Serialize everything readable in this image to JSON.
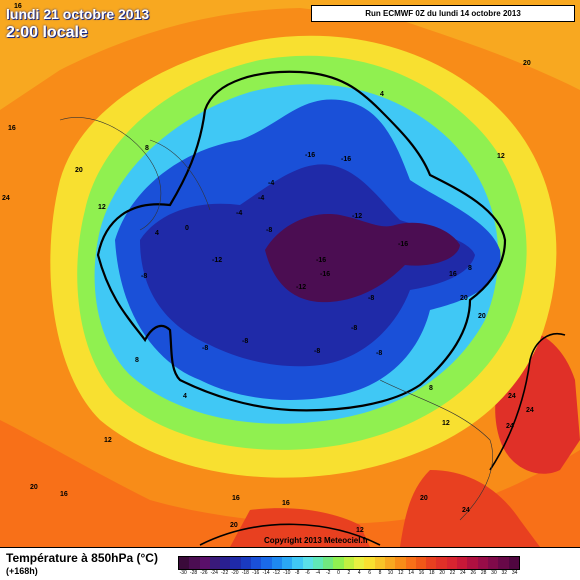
{
  "header": {
    "date_title": "lundi 21 octobre 2013",
    "time_title": "2:00 locale",
    "run_info": "Run ECMWF 0Z du lundi 14 octobre 2013"
  },
  "footer": {
    "parameter_title": "Température à 850hPa (°C)",
    "lead_time": "(+168h)",
    "copyright": "Copyright 2013 Meteociel.fr"
  },
  "legend": {
    "colors": [
      "#3a0a3a",
      "#4b0d52",
      "#5a0f6a",
      "#3a1a7a",
      "#2a1f90",
      "#1f2aa8",
      "#1a3ac0",
      "#1a50d8",
      "#1a6ae8",
      "#1e88f0",
      "#2aa8f5",
      "#40c8f5",
      "#5ae0e8",
      "#60e8b8",
      "#70e880",
      "#90f050",
      "#c0f040",
      "#e8f040",
      "#f8e030",
      "#f8c428",
      "#f8a820",
      "#f88c18",
      "#f87018",
      "#f05818",
      "#e84020",
      "#e03028",
      "#d82430",
      "#c81838",
      "#b01040",
      "#980c48",
      "#800a4a",
      "#680848",
      "#500640"
    ],
    "values": [
      "-30",
      "-28",
      "-26",
      "-24",
      "-22",
      "-20",
      "-18",
      "-16",
      "-14",
      "-12",
      "-10",
      "-8",
      "-6",
      "-4",
      "-2",
      "0",
      "2",
      "4",
      "6",
      "8",
      "10",
      "12",
      "14",
      "16",
      "18",
      "20",
      "22",
      "24",
      "26",
      "28",
      "30",
      "32",
      "34"
    ]
  },
  "map_labels": [
    {
      "text": "16"
    },
    {
      "text": "16"
    },
    {
      "text": "20"
    },
    {
      "text": "24"
    },
    {
      "text": "20"
    },
    {
      "text": "12"
    },
    {
      "text": "12"
    },
    {
      "text": "8"
    },
    {
      "text": "8"
    },
    {
      "text": "4"
    },
    {
      "text": "-4"
    },
    {
      "text": "-8"
    },
    {
      "text": "-8"
    },
    {
      "text": "-12"
    },
    {
      "text": "-16"
    },
    {
      "text": "-16"
    },
    {
      "text": "-16"
    },
    {
      "text": "-12"
    },
    {
      "text": "-16"
    },
    {
      "text": "-16"
    },
    {
      "text": "-12"
    },
    {
      "text": "-8"
    },
    {
      "text": "-8"
    },
    {
      "text": "-8"
    },
    {
      "text": "-8"
    },
    {
      "text": "-8"
    },
    {
      "text": "-4"
    },
    {
      "text": "4"
    },
    {
      "text": "8"
    },
    {
      "text": "12"
    },
    {
      "text": "16"
    },
    {
      "text": "20"
    },
    {
      "text": "24"
    },
    {
      "text": "24"
    },
    {
      "text": "24"
    },
    {
      "text": "20"
    },
    {
      "text": "16"
    },
    {
      "text": "20"
    },
    {
      "text": "24"
    },
    {
      "text": "12"
    },
    {
      "text": "16"
    },
    {
      "text": "20"
    },
    {
      "text": "20"
    },
    {
      "text": "16"
    },
    {
      "text": "12"
    },
    {
      "text": "8"
    },
    {
      "text": "-8"
    },
    {
      "text": "-4"
    },
    {
      "text": "0"
    },
    {
      "text": "4"
    }
  ]
}
